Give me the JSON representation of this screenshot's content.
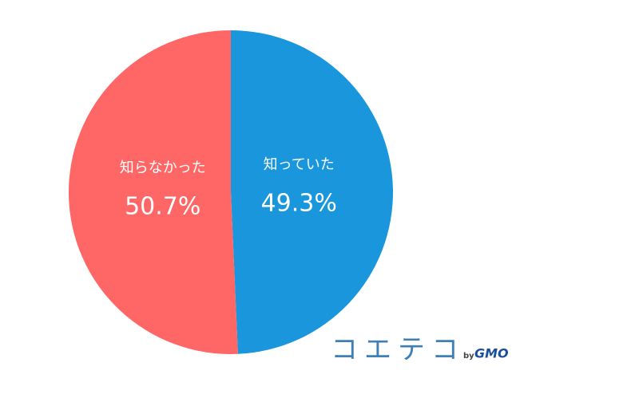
{
  "chart_data": {
    "type": "pie",
    "categories": [
      "知っていた",
      "知らなかった"
    ],
    "values": [
      49.3,
      50.7
    ],
    "value_labels": [
      "49.3%",
      "50.7%"
    ],
    "colors": [
      "#1996dc",
      "#ff6666"
    ]
  },
  "logo": {
    "name": "コエテコ",
    "by": "by",
    "company": "GMO"
  }
}
